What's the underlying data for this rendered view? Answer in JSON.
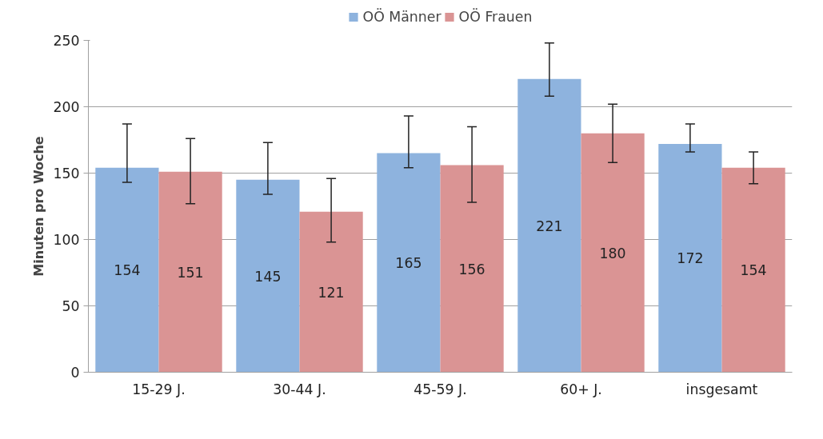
{
  "chart_data": {
    "type": "bar",
    "ylabel": "Minuten pro Woche",
    "categories": [
      "15-29 J.",
      "30-44 J.",
      "45-59 J.",
      "60+ J.",
      "insgesamt"
    ],
    "series": [
      {
        "name": "OÖ Männer",
        "color": "#8eb3de",
        "values": [
          154,
          145,
          165,
          221,
          172
        ],
        "errors": [
          [
            143,
            187
          ],
          [
            134,
            173
          ],
          [
            154,
            193
          ],
          [
            208,
            248
          ],
          [
            166,
            187
          ]
        ]
      },
      {
        "name": "OÖ Frauen",
        "color": "#da9494",
        "values": [
          151,
          121,
          156,
          180,
          154
        ],
        "errors": [
          [
            127,
            176
          ],
          [
            98,
            146
          ],
          [
            128,
            185
          ],
          [
            158,
            202
          ],
          [
            142,
            166
          ]
        ]
      }
    ],
    "ylim": [
      0,
      250
    ],
    "yticks": [
      0,
      50,
      100,
      150,
      200,
      250
    ],
    "grid": "y",
    "legend": "top",
    "data_labels": true
  }
}
